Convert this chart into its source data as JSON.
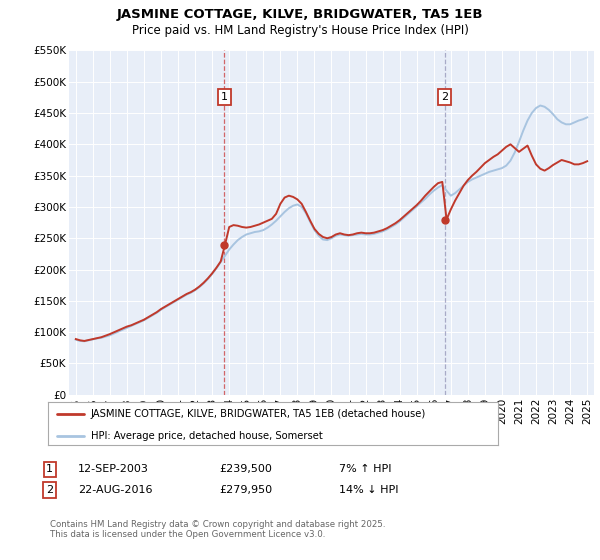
{
  "title": "JASMINE COTTAGE, KILVE, BRIDGWATER, TA5 1EB",
  "subtitle": "Price paid vs. HM Land Registry's House Price Index (HPI)",
  "hpi_color": "#a8c4e0",
  "property_color": "#c0392b",
  "vline1_color": "#cc4444",
  "vline2_color": "#9999bb",
  "plot_bg_color": "#e8eef8",
  "ylim": [
    0,
    550000
  ],
  "yticks": [
    0,
    50000,
    100000,
    150000,
    200000,
    250000,
    300000,
    350000,
    400000,
    450000,
    500000,
    550000
  ],
  "ytick_labels": [
    "£0",
    "£50K",
    "£100K",
    "£150K",
    "£200K",
    "£250K",
    "£300K",
    "£350K",
    "£400K",
    "£450K",
    "£500K",
    "£550K"
  ],
  "xlim_start": 1994.6,
  "xlim_end": 2025.4,
  "xticks": [
    1995,
    1996,
    1997,
    1998,
    1999,
    2000,
    2001,
    2002,
    2003,
    2004,
    2005,
    2006,
    2007,
    2008,
    2009,
    2010,
    2011,
    2012,
    2013,
    2014,
    2015,
    2016,
    2017,
    2018,
    2019,
    2020,
    2021,
    2022,
    2023,
    2024,
    2025
  ],
  "legend_label_property": "JASMINE COTTAGE, KILVE, BRIDGWATER, TA5 1EB (detached house)",
  "legend_label_hpi": "HPI: Average price, detached house, Somerset",
  "sale1_date": 2003.71,
  "sale1_price": 239500,
  "sale1_label": "1",
  "sale2_date": 2016.64,
  "sale2_price": 279950,
  "sale2_label": "2",
  "footer": "Contains HM Land Registry data © Crown copyright and database right 2025.\nThis data is licensed under the Open Government Licence v3.0.",
  "sale1_row": "12-SEP-2003",
  "sale1_price_str": "£239,500",
  "sale1_hpi": "7% ↑ HPI",
  "sale2_row": "22-AUG-2016",
  "sale2_price_str": "£279,950",
  "sale2_hpi": "14% ↓ HPI",
  "hpi_x": [
    1995.0,
    1995.25,
    1995.5,
    1995.75,
    1996.0,
    1996.25,
    1996.5,
    1996.75,
    1997.0,
    1997.25,
    1997.5,
    1997.75,
    1998.0,
    1998.25,
    1998.5,
    1998.75,
    1999.0,
    1999.25,
    1999.5,
    1999.75,
    2000.0,
    2000.25,
    2000.5,
    2000.75,
    2001.0,
    2001.25,
    2001.5,
    2001.75,
    2002.0,
    2002.25,
    2002.5,
    2002.75,
    2003.0,
    2003.25,
    2003.5,
    2003.75,
    2004.0,
    2004.25,
    2004.5,
    2004.75,
    2005.0,
    2005.25,
    2005.5,
    2005.75,
    2006.0,
    2006.25,
    2006.5,
    2006.75,
    2007.0,
    2007.25,
    2007.5,
    2007.75,
    2008.0,
    2008.25,
    2008.5,
    2008.75,
    2009.0,
    2009.25,
    2009.5,
    2009.75,
    2010.0,
    2010.25,
    2010.5,
    2010.75,
    2011.0,
    2011.25,
    2011.5,
    2011.75,
    2012.0,
    2012.25,
    2012.5,
    2012.75,
    2013.0,
    2013.25,
    2013.5,
    2013.75,
    2014.0,
    2014.25,
    2014.5,
    2014.75,
    2015.0,
    2015.25,
    2015.5,
    2015.75,
    2016.0,
    2016.25,
    2016.5,
    2016.75,
    2017.0,
    2017.25,
    2017.5,
    2017.75,
    2018.0,
    2018.25,
    2018.5,
    2018.75,
    2019.0,
    2019.25,
    2019.5,
    2019.75,
    2020.0,
    2020.25,
    2020.5,
    2020.75,
    2021.0,
    2021.25,
    2021.5,
    2021.75,
    2022.0,
    2022.25,
    2022.5,
    2022.75,
    2023.0,
    2023.25,
    2023.5,
    2023.75,
    2024.0,
    2024.25,
    2024.5,
    2024.75,
    2025.0
  ],
  "hpi_y": [
    88000,
    86000,
    85500,
    87000,
    88500,
    90000,
    91000,
    93000,
    95000,
    98000,
    101000,
    104000,
    107000,
    110000,
    113000,
    116000,
    119000,
    123000,
    127000,
    131000,
    136000,
    140000,
    144000,
    148000,
    152000,
    156000,
    160000,
    163000,
    167000,
    172000,
    178000,
    185000,
    193000,
    202000,
    212000,
    222000,
    232000,
    240000,
    247000,
    252000,
    256000,
    258000,
    260000,
    261000,
    263000,
    267000,
    272000,
    278000,
    285000,
    292000,
    298000,
    302000,
    304000,
    300000,
    290000,
    276000,
    263000,
    254000,
    248000,
    247000,
    250000,
    254000,
    256000,
    255000,
    254000,
    255000,
    256000,
    257000,
    256000,
    256000,
    257000,
    259000,
    261000,
    264000,
    268000,
    272000,
    277000,
    283000,
    289000,
    295000,
    301000,
    307000,
    313000,
    320000,
    326000,
    331000,
    335000,
    326000,
    318000,
    322000,
    328000,
    334000,
    340000,
    344000,
    347000,
    350000,
    353000,
    356000,
    358000,
    360000,
    362000,
    366000,
    374000,
    387000,
    404000,
    422000,
    438000,
    450000,
    458000,
    462000,
    460000,
    455000,
    448000,
    440000,
    435000,
    432000,
    432000,
    435000,
    438000,
    440000,
    443000
  ],
  "property_x": [
    1995.0,
    1995.25,
    1995.5,
    1995.75,
    1996.0,
    1996.25,
    1996.5,
    1996.75,
    1997.0,
    1997.25,
    1997.5,
    1997.75,
    1998.0,
    1998.25,
    1998.5,
    1998.75,
    1999.0,
    1999.25,
    1999.5,
    1999.75,
    2000.0,
    2000.25,
    2000.5,
    2000.75,
    2001.0,
    2001.25,
    2001.5,
    2001.75,
    2002.0,
    2002.25,
    2002.5,
    2002.75,
    2003.0,
    2003.25,
    2003.5,
    2003.75,
    2004.0,
    2004.25,
    2004.5,
    2004.75,
    2005.0,
    2005.25,
    2005.5,
    2005.75,
    2006.0,
    2006.25,
    2006.5,
    2006.75,
    2007.0,
    2007.25,
    2007.5,
    2007.75,
    2008.0,
    2008.25,
    2008.5,
    2008.75,
    2009.0,
    2009.25,
    2009.5,
    2009.75,
    2010.0,
    2010.25,
    2010.5,
    2010.75,
    2011.0,
    2011.25,
    2011.5,
    2011.75,
    2012.0,
    2012.25,
    2012.5,
    2012.75,
    2013.0,
    2013.25,
    2013.5,
    2013.75,
    2014.0,
    2014.25,
    2014.5,
    2014.75,
    2015.0,
    2015.25,
    2015.5,
    2015.75,
    2016.0,
    2016.25,
    2016.5,
    2016.75,
    2017.0,
    2017.25,
    2017.5,
    2017.75,
    2018.0,
    2018.25,
    2018.5,
    2018.75,
    2019.0,
    2019.25,
    2019.5,
    2019.75,
    2020.0,
    2020.25,
    2020.5,
    2020.75,
    2021.0,
    2021.25,
    2021.5,
    2021.75,
    2022.0,
    2022.25,
    2022.5,
    2022.75,
    2023.0,
    2023.25,
    2023.5,
    2023.75,
    2024.0,
    2024.25,
    2024.5,
    2024.75,
    2025.0
  ],
  "property_y": [
    89000,
    87000,
    86000,
    87500,
    89000,
    90500,
    92000,
    94500,
    97000,
    100000,
    103000,
    106000,
    109000,
    111000,
    114000,
    117000,
    120000,
    124000,
    128000,
    132000,
    137000,
    141000,
    145000,
    149000,
    153000,
    157000,
    161000,
    164000,
    168000,
    173000,
    179000,
    186000,
    194000,
    203000,
    213000,
    239500,
    268000,
    271000,
    270000,
    268000,
    267000,
    268000,
    270000,
    272000,
    275000,
    278000,
    281000,
    289000,
    305000,
    315000,
    318000,
    316000,
    312000,
    305000,
    292000,
    278000,
    265000,
    257000,
    252000,
    250000,
    252000,
    256000,
    258000,
    256000,
    255000,
    256000,
    258000,
    259000,
    258000,
    258000,
    259000,
    261000,
    263000,
    266000,
    270000,
    274000,
    279000,
    285000,
    291000,
    297000,
    303000,
    310000,
    318000,
    325000,
    332000,
    338000,
    340000,
    279950,
    296000,
    310000,
    322000,
    334000,
    343000,
    350000,
    356000,
    363000,
    370000,
    375000,
    380000,
    384000,
    390000,
    396000,
    400000,
    394000,
    388000,
    393000,
    398000,
    382000,
    368000,
    361000,
    358000,
    362000,
    367000,
    371000,
    375000,
    373000,
    371000,
    368000,
    368000,
    370000,
    373000
  ]
}
